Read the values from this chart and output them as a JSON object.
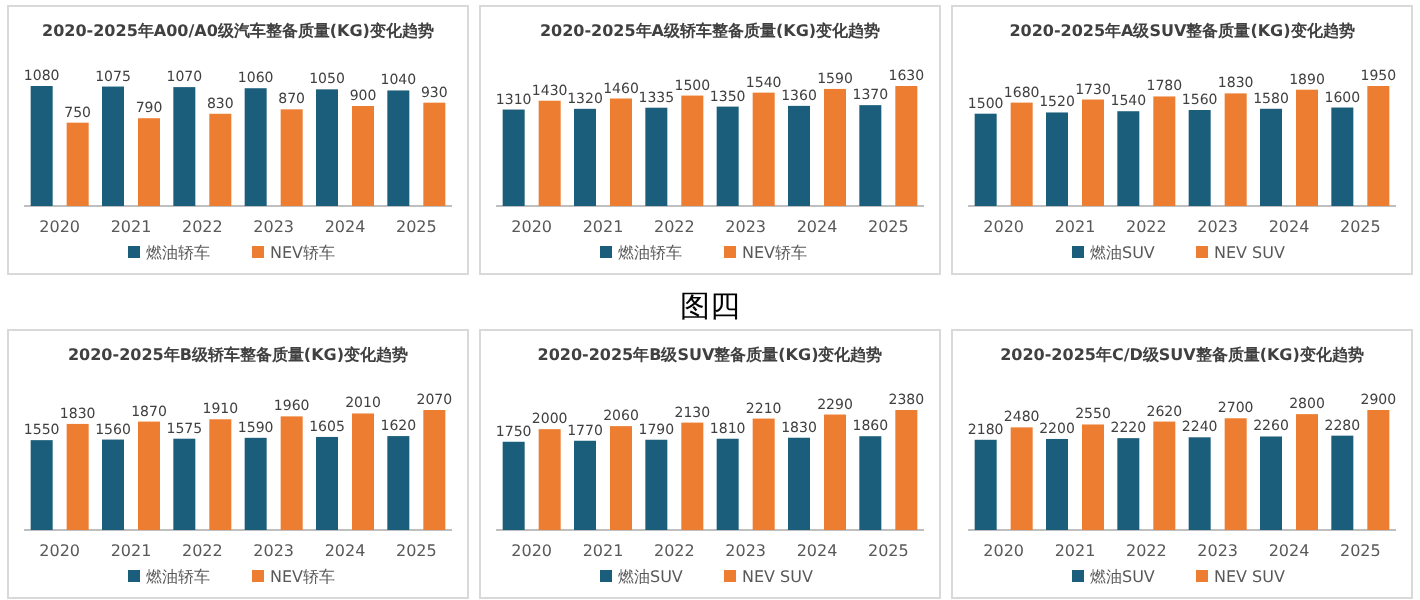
{
  "chart_data": [
    {
      "type": "bar",
      "title": "2020-2025年A00/A0级汽车整备质量(KG)变化趋势",
      "categories": [
        "2020",
        "2021",
        "2022",
        "2023",
        "2024",
        "2025"
      ],
      "data_labels": true,
      "legend": "bottom",
      "series": [
        {
          "name": "燃油轿车",
          "color": "#1b5e7b",
          "values": [
            1080,
            1075,
            1070,
            1060,
            1050,
            1040
          ]
        },
        {
          "name": "NEV轿车",
          "color": "#ed7d31",
          "values": [
            750,
            790,
            830,
            870,
            900,
            930
          ]
        }
      ]
    },
    {
      "type": "bar",
      "title": "2020-2025年A级轿车整备质量(KG)变化趋势",
      "categories": [
        "2020",
        "2021",
        "2022",
        "2023",
        "2024",
        "2025"
      ],
      "data_labels": true,
      "legend": "bottom",
      "annotations": [
        "图四"
      ],
      "series": [
        {
          "name": "燃油轿车",
          "color": "#1b5e7b",
          "values": [
            1310,
            1320,
            1335,
            1350,
            1360,
            1370
          ]
        },
        {
          "name": "NEV轿车",
          "color": "#ed7d31",
          "values": [
            1430,
            1460,
            1500,
            1540,
            1590,
            1630
          ]
        }
      ]
    },
    {
      "type": "bar",
      "title": "2020-2025年A级SUV整备质量(KG)变化趋势",
      "categories": [
        "2020",
        "2021",
        "2022",
        "2023",
        "2024",
        "2025"
      ],
      "data_labels": true,
      "legend": "bottom",
      "series": [
        {
          "name": "燃油SUV",
          "color": "#1b5e7b",
          "values": [
            1500,
            1520,
            1540,
            1560,
            1580,
            1600
          ]
        },
        {
          "name": "NEV SUV",
          "color": "#ed7d31",
          "values": [
            1680,
            1730,
            1780,
            1830,
            1890,
            1950
          ]
        }
      ]
    },
    {
      "type": "bar",
      "title": "2020-2025年B级轿车整备质量(KG)变化趋势",
      "categories": [
        "2020",
        "2021",
        "2022",
        "2023",
        "2024",
        "2025"
      ],
      "data_labels": true,
      "legend": "bottom",
      "series": [
        {
          "name": "燃油轿车",
          "color": "#1b5e7b",
          "values": [
            1550,
            1560,
            1575,
            1590,
            1605,
            1620
          ]
        },
        {
          "name": "NEV轿车",
          "color": "#ed7d31",
          "values": [
            1830,
            1870,
            1910,
            1960,
            2010,
            2070
          ]
        }
      ]
    },
    {
      "type": "bar",
      "title": "2020-2025年B级SUV整备质量(KG)变化趋势",
      "categories": [
        "2020",
        "2021",
        "2022",
        "2023",
        "2024",
        "2025"
      ],
      "data_labels": true,
      "legend": "bottom",
      "series": [
        {
          "name": "燃油SUV",
          "color": "#1b5e7b",
          "values": [
            1750,
            1770,
            1790,
            1810,
            1830,
            1860
          ]
        },
        {
          "name": "NEV SUV",
          "color": "#ed7d31",
          "values": [
            2000,
            2060,
            2130,
            2210,
            2290,
            2380
          ]
        }
      ]
    },
    {
      "type": "bar",
      "title": "2020-2025年C/D级SUV整备质量(KG)变化趋势",
      "categories": [
        "2020",
        "2021",
        "2022",
        "2023",
        "2024",
        "2025"
      ],
      "data_labels": true,
      "legend": "bottom",
      "series": [
        {
          "name": "燃油SUV",
          "color": "#1b5e7b",
          "values": [
            2180,
            2200,
            2220,
            2240,
            2260,
            2280
          ]
        },
        {
          "name": "NEV SUV",
          "color": "#ed7d31",
          "values": [
            2480,
            2550,
            2620,
            2700,
            2800,
            2900
          ]
        }
      ]
    }
  ]
}
